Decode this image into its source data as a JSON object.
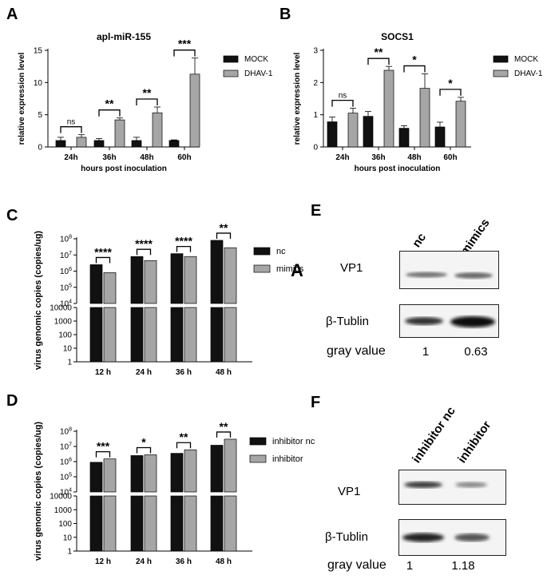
{
  "panel_letters": {
    "A": "A",
    "B": "B",
    "C": "C",
    "D": "D",
    "E": "E",
    "F": "F",
    "stray": "A"
  },
  "colors": {
    "black_bar": "#111111",
    "gray_bar": "#a6a6a6",
    "axis": "#000000"
  },
  "chart_data": [
    {
      "id": "A",
      "type": "bar",
      "title": "apl-miR-155",
      "xlabel": "hours post inoculation",
      "ylabel": "relative expression level",
      "categories": [
        "24h",
        "36h",
        "48h",
        "60h"
      ],
      "ylim": [
        0,
        15
      ],
      "yticks": [
        0,
        5,
        10,
        15
      ],
      "series": [
        {
          "name": "MOCK",
          "color": "#111111",
          "values": [
            1.0,
            1.0,
            1.0,
            1.0
          ],
          "errors": [
            0.5,
            0.3,
            0.5,
            0.1
          ]
        },
        {
          "name": "DHAV-1",
          "color": "#a6a6a6",
          "values": [
            1.5,
            4.2,
            5.3,
            11.3
          ],
          "errors": [
            0.4,
            0.3,
            0.9,
            2.5
          ]
        }
      ],
      "significance": [
        "ns",
        "**",
        "**",
        "***"
      ],
      "legend": "right"
    },
    {
      "id": "B",
      "type": "bar",
      "title": "SOCS1",
      "xlabel": "hours post inoculation",
      "ylabel": "relative expression level",
      "categories": [
        "24h",
        "36h",
        "48h",
        "60h"
      ],
      "ylim": [
        0,
        3
      ],
      "yticks": [
        0,
        1,
        2,
        3
      ],
      "series": [
        {
          "name": "MOCK",
          "color": "#111111",
          "values": [
            0.78,
            0.95,
            0.58,
            0.62
          ],
          "errors": [
            0.15,
            0.15,
            0.08,
            0.15
          ]
        },
        {
          "name": "DHAV-1",
          "color": "#a6a6a6",
          "values": [
            1.05,
            2.38,
            1.82,
            1.42
          ],
          "errors": [
            0.15,
            0.12,
            0.45,
            0.12
          ]
        }
      ],
      "significance": [
        "ns",
        "**",
        "*",
        "*"
      ],
      "legend": "right"
    },
    {
      "id": "C",
      "type": "bar",
      "ylabel": "virus genomic copies (copies/ug)",
      "categories": [
        "12 h",
        "24 h",
        "36 h",
        "48 h"
      ],
      "yscale": "split: linear 1–10000 / log 10^4–10^8",
      "yticks_linear": [
        "1",
        "10",
        "100",
        "1000",
        "10000"
      ],
      "yticks_log": [
        "10^4",
        "10^5",
        "10^6",
        "10^7",
        "10^8"
      ],
      "series": [
        {
          "name": "nc",
          "color": "#111111",
          "values": [
            2500000,
            8000000,
            12000000,
            80000000
          ]
        },
        {
          "name": "mimics",
          "color": "#a6a6a6",
          "values": [
            800000,
            4500000,
            8000000,
            28000000
          ]
        }
      ],
      "significance": [
        "****",
        "****",
        "****",
        "**"
      ],
      "legend": "right"
    },
    {
      "id": "D",
      "type": "bar",
      "ylabel": "virus genomic copies (copies/ug)",
      "categories": [
        "12 h",
        "24 h",
        "36 h",
        "48 h"
      ],
      "yscale": "split: linear 1–10000 / log 10^4–10^8",
      "yticks_linear": [
        "1",
        "10",
        "100",
        "1000",
        "10000"
      ],
      "yticks_log": [
        "10^4",
        "10^5",
        "10^6",
        "10^7",
        "10^8"
      ],
      "series": [
        {
          "name": "inhibitor nc",
          "color": "#111111",
          "values": [
            900000,
            2500000,
            3500000,
            12000000
          ]
        },
        {
          "name": "inhibitor",
          "color": "#a6a6a6",
          "values": [
            1500000,
            2800000,
            6000000,
            30000000
          ]
        }
      ],
      "significance": [
        "***",
        "*",
        "**",
        "**"
      ],
      "legend": "right"
    }
  ],
  "blots": [
    {
      "id": "E",
      "lanes": [
        "nc",
        "mimics"
      ],
      "rows": [
        "VP1",
        "β-Tublin"
      ],
      "gray_label": "gray value",
      "gray_values": [
        "1",
        "0.63"
      ]
    },
    {
      "id": "F",
      "lanes": [
        "inhibitor nc",
        "inhibitor"
      ],
      "rows": [
        "VP1",
        "β-Tublin"
      ],
      "gray_label": "gray value",
      "gray_values": [
        "1",
        "1.18"
      ]
    }
  ]
}
